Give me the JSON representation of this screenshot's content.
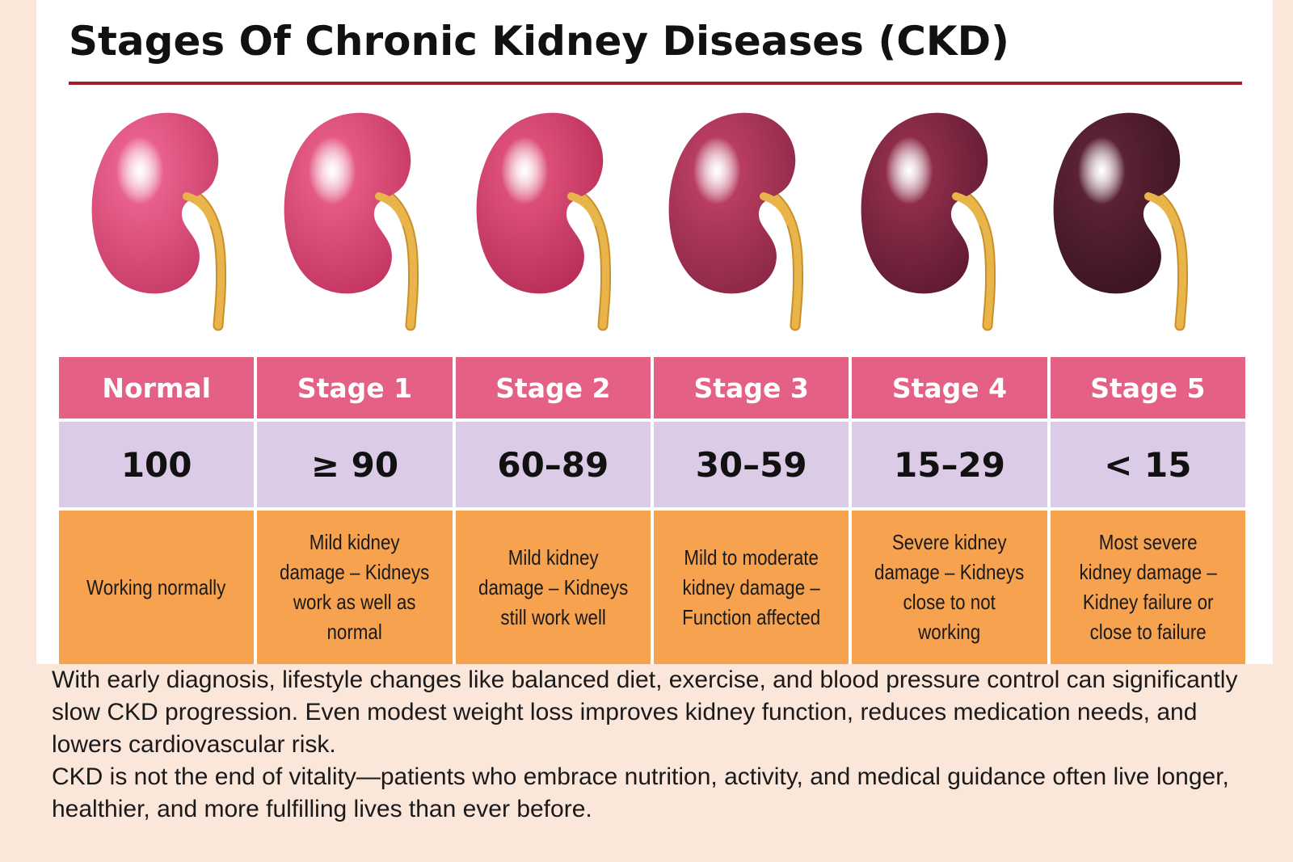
{
  "title": "Stages Of Chronic Kidney Diseases (CKD)",
  "stages": [
    {
      "label": "Normal",
      "value": "100",
      "description": "Working normally",
      "color": "#e8608c",
      "dark": "#c63b66"
    },
    {
      "label": "Stage 1",
      "value": "≥ 90",
      "description": "Mild kidney damage – Kidneys work as well as normal",
      "color": "#e45a85",
      "dark": "#c13460"
    },
    {
      "label": "Stage 2",
      "value": "60–89",
      "description": "Mild kidney damage – Kidneys still work well",
      "color": "#dc4f78",
      "dark": "#b52d56"
    },
    {
      "label": "Stage 3",
      "value": "30–59",
      "description": "Mild to moderate kidney damage – Function affected",
      "color": "#b83d62",
      "dark": "#8a2745"
    },
    {
      "label": "Stage 4",
      "value": "15–29",
      "description": "Severe kidney damage – Kidneys close to not working",
      "color": "#8e2d4a",
      "dark": "#5e1a30"
    },
    {
      "label": "Stage 5",
      "value": "< 15",
      "description": "Most severe kidney damage – Kidney failure or close to failure",
      "color": "#5b2234",
      "dark": "#3a1420"
    }
  ],
  "footer": {
    "paragraph1": "With early diagnosis, lifestyle changes like balanced diet, exercise, and blood pressure control can significantly slow CKD progression. Even modest weight loss improves kidney function, reduces medication needs, and lowers cardiovascular risk.",
    "paragraph2": "CKD is not the end of vitality—patients who embrace nutrition, activity, and medical guidance often live longer, healthier, and more fulfilling lives than ever before."
  },
  "colors": {
    "header": "#e46185",
    "value_row": "#dccbe6",
    "description_row": "#f6a24f",
    "rule": "#a31d22",
    "ureter": "#e9b54a"
  }
}
